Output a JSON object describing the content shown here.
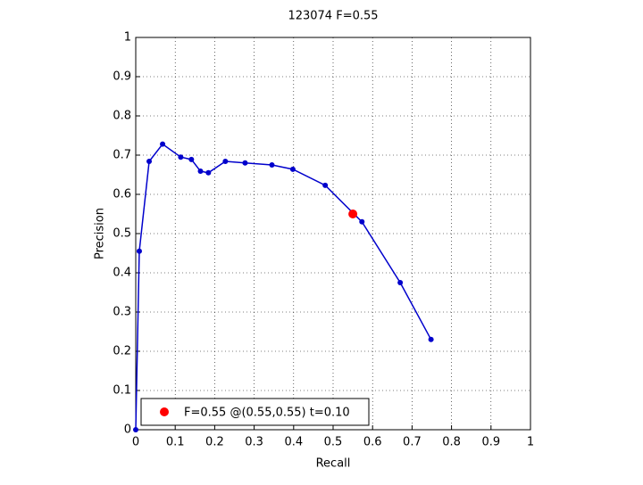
{
  "chart_data": {
    "type": "line",
    "title": "123074 F=0.55",
    "x_label": "Recall",
    "y_label": "Precision",
    "series": [
      {
        "color": "#0000cc",
        "x": [
          0,
          0.009,
          0.034,
          0.068,
          0.114,
          0.141,
          0.164,
          0.184,
          0.227,
          0.277,
          0.345,
          0.398,
          0.48,
          0.573,
          0.67,
          0.748
        ],
        "values": [
          0,
          0.455,
          0.684,
          0.728,
          0.695,
          0.689,
          0.659,
          0.655,
          0.684,
          0.68,
          0.675,
          0.664,
          0.623,
          0.53,
          0.375,
          0.23
        ]
      },
      {
        "name": "F=0.55 @(0.55,0.55) t=0.10",
        "color": "#ff0000",
        "x": [
          0.55
        ],
        "values": [
          0.55
        ]
      }
    ],
    "xlim": [
      0,
      1
    ],
    "ylim": [
      0,
      1
    ],
    "xticks": [
      0,
      0.1,
      0.2,
      0.3,
      0.4,
      0.5,
      0.6,
      0.7,
      0.8,
      0.9,
      1
    ],
    "yticks": [
      0,
      0.1,
      0.2,
      0.3,
      0.4,
      0.5,
      0.6,
      0.7,
      0.8,
      0.9,
      1
    ],
    "grid": true,
    "legend": "lower left"
  }
}
